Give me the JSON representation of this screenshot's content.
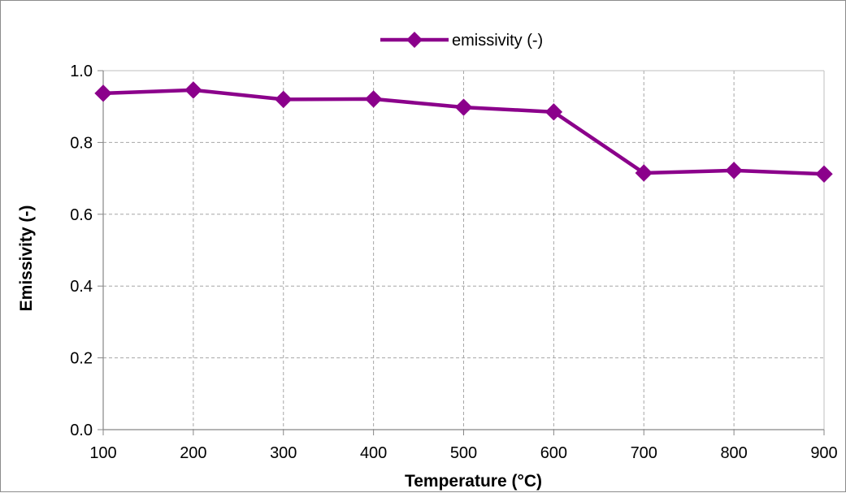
{
  "chart_data": {
    "type": "line",
    "title": "",
    "xlabel": "Temperature (°C)",
    "ylabel": "Emissivity (-)",
    "x": [
      100,
      200,
      300,
      400,
      500,
      600,
      700,
      800,
      900
    ],
    "xlim": [
      100,
      900
    ],
    "ylim": [
      0.0,
      1.0
    ],
    "x_ticks": [
      "100",
      "200",
      "300",
      "400",
      "500",
      "600",
      "700",
      "800",
      "900"
    ],
    "y_ticks": [
      "0.0",
      "0.2",
      "0.4",
      "0.6",
      "0.8",
      "1.0"
    ],
    "grid": true,
    "legend_position": "top",
    "series": [
      {
        "name": "emissivity (-)",
        "color": "#8B008B",
        "marker": "diamond",
        "values": [
          0.937,
          0.946,
          0.92,
          0.921,
          0.898,
          0.885,
          0.715,
          0.722,
          0.712
        ]
      }
    ]
  }
}
